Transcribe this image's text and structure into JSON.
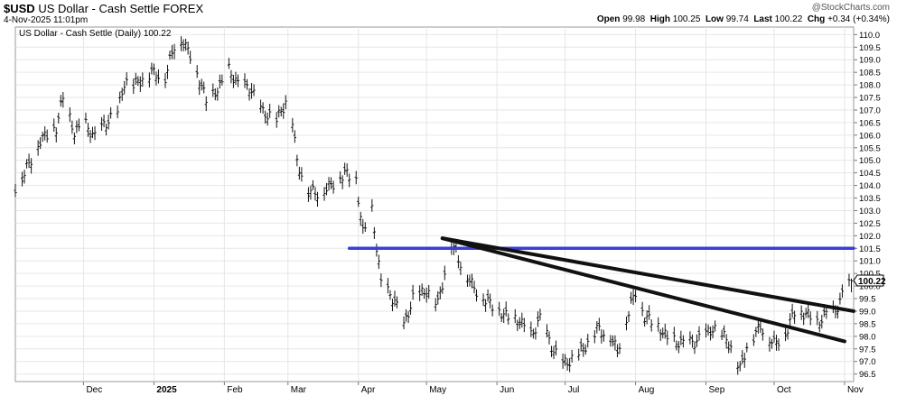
{
  "header": {
    "ticker": "$USD",
    "name": "US Dollar - Cash Settle",
    "exchange": "FOREX",
    "timestamp": "4-Nov-2025 11:01pm",
    "brand": "@StockCharts.com",
    "quote": {
      "open_label": "Open",
      "open": "99.98",
      "high_label": "High",
      "high": "100.25",
      "low_label": "Low",
      "low": "99.74",
      "last_label": "Last",
      "last": "100.22",
      "chg_label": "Chg",
      "chg": "+0.34 (+0.34%)"
    }
  },
  "chart_data": {
    "type": "line",
    "legend": "US Dollar - Cash Settle (Daily) 100.22",
    "last_value_label": "100.22",
    "ylim": [
      96.2,
      110.3
    ],
    "y_ticks": [
      96.5,
      97.0,
      97.5,
      98.0,
      98.5,
      99.0,
      99.5,
      100.0,
      100.5,
      101.0,
      101.5,
      102.0,
      102.5,
      103.0,
      103.5,
      104.0,
      104.5,
      105.0,
      105.5,
      106.0,
      106.5,
      107.0,
      107.5,
      108.0,
      108.5,
      109.0,
      109.5,
      110.0
    ],
    "x_ticks": [
      {
        "label": "Dec",
        "date": "2024-12-01",
        "bold": false
      },
      {
        "label": "2025",
        "date": "2025-01-01",
        "bold": true
      },
      {
        "label": "Feb",
        "date": "2025-02-01",
        "bold": false
      },
      {
        "label": "Mar",
        "date": "2025-03-01",
        "bold": false
      },
      {
        "label": "Apr",
        "date": "2025-04-01",
        "bold": false
      },
      {
        "label": "May",
        "date": "2025-05-01",
        "bold": false
      },
      {
        "label": "Jun",
        "date": "2025-06-01",
        "bold": false
      },
      {
        "label": "Jul",
        "date": "2025-07-01",
        "bold": false
      },
      {
        "label": "Aug",
        "date": "2025-08-01",
        "bold": false
      },
      {
        "label": "Sep",
        "date": "2025-09-01",
        "bold": false
      },
      {
        "label": "Oct",
        "date": "2025-10-01",
        "bold": false
      },
      {
        "label": "Nov",
        "date": "2025-11-01",
        "bold": false
      }
    ],
    "x_start": "2024-11-01",
    "x_end": "2025-11-05",
    "series": [
      {
        "style": "ohlc-bars",
        "points": [
          [
            "2024-11-01",
            103.9
          ],
          [
            "2024-11-05",
            104.5
          ],
          [
            "2024-11-12",
            105.8
          ],
          [
            "2024-11-19",
            106.3
          ],
          [
            "2024-11-22",
            107.5
          ],
          [
            "2024-11-27",
            106.1
          ],
          [
            "2024-12-02",
            106.4
          ],
          [
            "2024-12-06",
            105.9
          ],
          [
            "2024-12-10",
            106.4
          ],
          [
            "2024-12-16",
            106.9
          ],
          [
            "2024-12-19",
            108.1
          ],
          [
            "2024-12-23",
            108.0
          ],
          [
            "2024-12-31",
            108.5
          ],
          [
            "2025-01-06",
            108.3
          ],
          [
            "2025-01-10",
            109.6
          ],
          [
            "2025-01-13",
            109.8
          ],
          [
            "2025-01-17",
            109.2
          ],
          [
            "2025-01-21",
            108.2
          ],
          [
            "2025-01-24",
            107.4
          ],
          [
            "2025-01-30",
            107.9
          ],
          [
            "2025-02-03",
            108.6
          ],
          [
            "2025-02-07",
            108.0
          ],
          [
            "2025-02-12",
            107.9
          ],
          [
            "2025-02-18",
            106.9
          ],
          [
            "2025-02-24",
            106.6
          ],
          [
            "2025-02-28",
            107.3
          ],
          [
            "2025-03-03",
            106.6
          ],
          [
            "2025-03-05",
            104.9
          ],
          [
            "2025-03-10",
            103.8
          ],
          [
            "2025-03-14",
            103.7
          ],
          [
            "2025-03-20",
            104.0
          ],
          [
            "2025-03-26",
            104.5
          ],
          [
            "2025-03-31",
            104.2
          ],
          [
            "2025-04-03",
            102.1
          ],
          [
            "2025-04-07",
            103.0
          ],
          [
            "2025-04-11",
            100.1
          ],
          [
            "2025-04-17",
            99.4
          ],
          [
            "2025-04-21",
            98.4
          ],
          [
            "2025-04-25",
            99.5
          ],
          [
            "2025-05-01",
            99.8
          ],
          [
            "2025-05-06",
            99.3
          ],
          [
            "2025-05-12",
            101.7
          ],
          [
            "2025-05-16",
            100.9
          ],
          [
            "2025-05-22",
            99.9
          ],
          [
            "2025-05-29",
            99.3
          ],
          [
            "2025-06-05",
            98.8
          ],
          [
            "2025-06-11",
            98.6
          ],
          [
            "2025-06-16",
            98.0
          ],
          [
            "2025-06-20",
            98.7
          ],
          [
            "2025-06-26",
            97.4
          ],
          [
            "2025-06-30",
            96.9
          ],
          [
            "2025-07-03",
            97.0
          ],
          [
            "2025-07-09",
            97.5
          ],
          [
            "2025-07-15",
            98.3
          ],
          [
            "2025-07-21",
            98.0
          ],
          [
            "2025-07-24",
            97.4
          ],
          [
            "2025-07-28",
            98.7
          ],
          [
            "2025-08-01",
            99.8
          ],
          [
            "2025-08-05",
            98.8
          ],
          [
            "2025-08-11",
            98.4
          ],
          [
            "2025-08-15",
            97.9
          ],
          [
            "2025-08-22",
            97.7
          ],
          [
            "2025-08-28",
            97.8
          ],
          [
            "2025-09-04",
            98.3
          ],
          [
            "2025-09-10",
            97.9
          ],
          [
            "2025-09-16",
            96.7
          ],
          [
            "2025-09-19",
            97.6
          ],
          [
            "2025-09-25",
            98.4
          ],
          [
            "2025-10-01",
            97.7
          ],
          [
            "2025-10-06",
            98.1
          ],
          [
            "2025-10-10",
            99.0
          ],
          [
            "2025-10-15",
            98.9
          ],
          [
            "2025-10-20",
            98.5
          ],
          [
            "2025-10-24",
            98.9
          ],
          [
            "2025-10-28",
            99.0
          ],
          [
            "2025-11-01",
            99.8
          ],
          [
            "2025-11-04",
            100.2
          ]
        ]
      },
      {
        "style": "horizontal-line",
        "color": "#3a3fd8",
        "points": [
          [
            "2025-03-28",
            101.5
          ],
          [
            "2025-11-05",
            101.5
          ]
        ]
      },
      {
        "style": "trendline",
        "color": "#111111",
        "points": [
          [
            "2025-05-08",
            101.9
          ],
          [
            "2025-11-05",
            99.0
          ]
        ]
      },
      {
        "style": "trendline",
        "color": "#111111",
        "points": [
          [
            "2025-05-08",
            101.9
          ],
          [
            "2025-11-01",
            97.8
          ]
        ]
      }
    ]
  }
}
